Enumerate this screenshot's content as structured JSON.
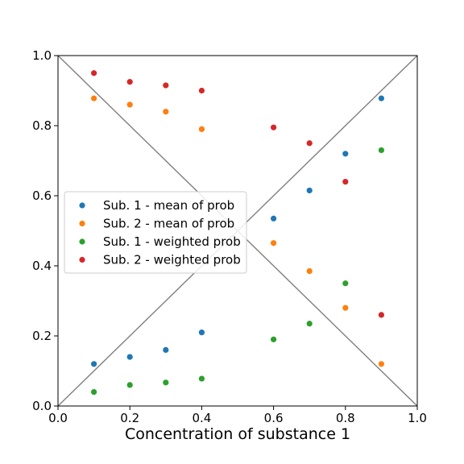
{
  "chart_data": {
    "type": "scatter",
    "title": "",
    "xlabel": "Concentration of substance 1",
    "ylabel": "",
    "xlim": [
      0.0,
      1.0
    ],
    "ylim": [
      0.0,
      1.0
    ],
    "grid": false,
    "legend_placement": "center-left",
    "x_ticks": [
      0.0,
      0.2,
      0.4,
      0.6,
      0.8,
      1.0
    ],
    "y_ticks": [
      0.0,
      0.2,
      0.4,
      0.6,
      0.8,
      1.0
    ],
    "x_tick_labels": [
      "0.0",
      "0.2",
      "0.4",
      "0.6",
      "0.8",
      "1.0"
    ],
    "y_tick_labels": [
      "0.0",
      "0.2",
      "0.4",
      "0.6",
      "0.8",
      "1.0"
    ],
    "reference_lines": [
      {
        "x": [
          0.0,
          1.0
        ],
        "y": [
          0.0,
          1.0
        ],
        "color": "#808080"
      },
      {
        "x": [
          0.0,
          1.0
        ],
        "y": [
          1.0,
          0.0
        ],
        "color": "#808080"
      }
    ],
    "series": [
      {
        "name": "Sub. 1 - mean of prob",
        "color": "#1f77b4",
        "x": [
          0.1,
          0.2,
          0.3,
          0.4,
          0.6,
          0.7,
          0.8,
          0.9
        ],
        "y": [
          0.12,
          0.14,
          0.16,
          0.21,
          0.535,
          0.615,
          0.72,
          0.878
        ]
      },
      {
        "name": "Sub. 2 - mean of prob",
        "color": "#ff7f0e",
        "x": [
          0.1,
          0.2,
          0.3,
          0.4,
          0.6,
          0.7,
          0.8,
          0.9
        ],
        "y": [
          0.878,
          0.86,
          0.84,
          0.79,
          0.465,
          0.385,
          0.28,
          0.12
        ]
      },
      {
        "name": "Sub. 1 - weighted prob",
        "color": "#2ca02c",
        "x": [
          0.1,
          0.2,
          0.3,
          0.4,
          0.6,
          0.7,
          0.8,
          0.9
        ],
        "y": [
          0.04,
          0.06,
          0.067,
          0.078,
          0.19,
          0.235,
          0.35,
          0.73
        ]
      },
      {
        "name": "Sub. 2 - weighted prob",
        "color": "#d62728",
        "x": [
          0.1,
          0.2,
          0.3,
          0.4,
          0.6,
          0.7,
          0.8,
          0.9
        ],
        "y": [
          0.95,
          0.925,
          0.915,
          0.9,
          0.795,
          0.75,
          0.64,
          0.26
        ]
      }
    ]
  }
}
